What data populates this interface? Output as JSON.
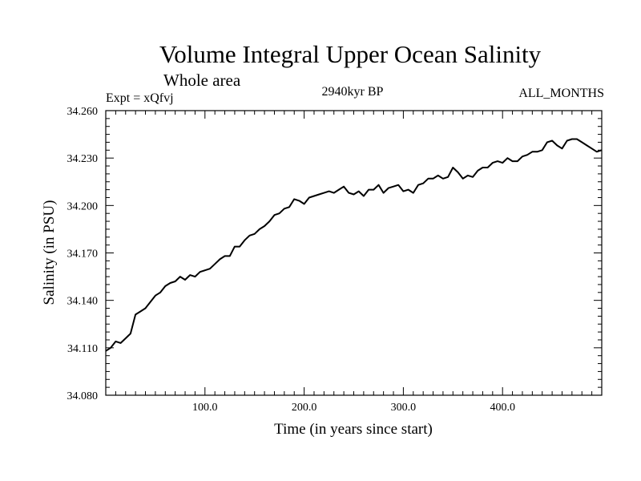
{
  "header": {
    "title": "Volume Integral Upper Ocean Salinity",
    "subtitle": "Whole area",
    "experiment": "Expt = xQfvj",
    "period": "2940kyr BP",
    "months": "ALL_MONTHS"
  },
  "chart_data": {
    "type": "line",
    "title": "Volume Integral Upper Ocean Salinity",
    "subtitle": "Whole area",
    "xlabel": "Time (in years since start)",
    "ylabel": "Salinity (in PSU)",
    "xlim": [
      0,
      500
    ],
    "ylim": [
      34.08,
      34.26
    ],
    "xticks": [
      100,
      200,
      300,
      400
    ],
    "xtick_labels": [
      "100.0",
      "200.0",
      "300.0",
      "400.0"
    ],
    "yticks": [
      34.08,
      34.11,
      34.14,
      34.17,
      34.2,
      34.23,
      34.26
    ],
    "ytick_labels": [
      "34.080",
      "34.110",
      "34.140",
      "34.170",
      "34.200",
      "34.230",
      "34.260"
    ],
    "grid": false,
    "series": [
      {
        "name": "salinity",
        "x": [
          0,
          5,
          10,
          15,
          20,
          25,
          30,
          35,
          40,
          45,
          50,
          55,
          60,
          65,
          70,
          75,
          80,
          85,
          90,
          95,
          100,
          105,
          110,
          115,
          120,
          125,
          130,
          135,
          140,
          145,
          150,
          155,
          160,
          165,
          170,
          175,
          180,
          185,
          190,
          195,
          200,
          205,
          210,
          215,
          220,
          225,
          230,
          235,
          240,
          245,
          250,
          255,
          260,
          265,
          270,
          275,
          280,
          285,
          290,
          295,
          300,
          305,
          310,
          315,
          320,
          325,
          330,
          335,
          340,
          345,
          350,
          355,
          360,
          365,
          370,
          375,
          380,
          385,
          390,
          395,
          400,
          405,
          410,
          415,
          420,
          425,
          430,
          435,
          440,
          445,
          450,
          455,
          460,
          465,
          470,
          475,
          480,
          485,
          490,
          495,
          500
        ],
        "values": [
          34.108,
          34.11,
          34.114,
          34.113,
          34.116,
          34.119,
          34.131,
          34.133,
          34.135,
          34.139,
          34.143,
          34.145,
          34.149,
          34.151,
          34.152,
          34.155,
          34.153,
          34.156,
          34.155,
          34.158,
          34.159,
          34.16,
          34.163,
          34.166,
          34.168,
          34.168,
          34.174,
          34.174,
          34.178,
          34.181,
          34.182,
          34.185,
          34.187,
          34.19,
          34.194,
          34.195,
          34.198,
          34.199,
          34.204,
          34.203,
          34.201,
          34.205,
          34.206,
          34.207,
          34.208,
          34.209,
          34.208,
          34.21,
          34.212,
          34.208,
          34.207,
          34.209,
          34.206,
          34.21,
          34.21,
          34.213,
          34.208,
          34.211,
          34.212,
          34.213,
          34.209,
          34.21,
          34.208,
          34.213,
          34.214,
          34.217,
          34.217,
          34.219,
          34.217,
          34.218,
          34.224,
          34.221,
          34.217,
          34.219,
          34.218,
          34.222,
          34.224,
          34.224,
          34.227,
          34.228,
          34.227,
          34.23,
          34.228,
          34.228,
          34.231,
          34.232,
          34.234,
          34.234,
          34.235,
          34.24,
          34.241,
          34.238,
          34.236,
          34.241,
          34.242,
          34.242,
          34.24,
          34.238,
          34.236,
          34.234,
          34.235
        ]
      }
    ]
  }
}
